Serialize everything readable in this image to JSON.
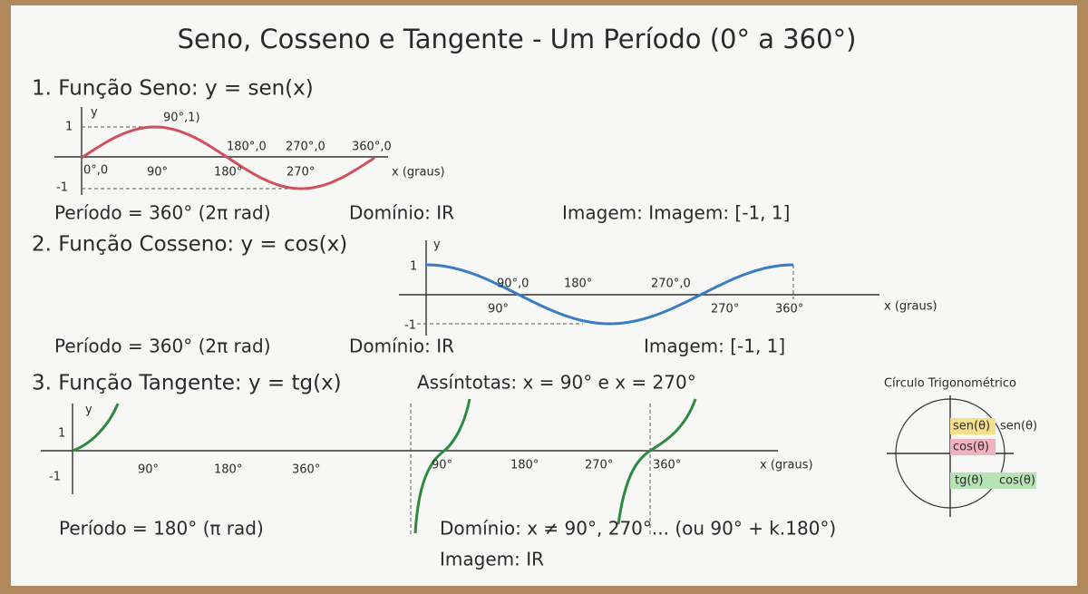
{
  "title": "Seno, Cosseno e Tangente - Um Período (0° a 360°)",
  "sine": {
    "heading": "1. Função Seno: y = sen(x)",
    "y_axis": "y",
    "x_axis": "x (graus)",
    "tick_1": "1",
    "tick_minus_1": "-1",
    "point_labels": [
      "90°,1)",
      "180°,0",
      "270°,0",
      "360°,0",
      "0°,0"
    ],
    "x_labels": [
      "90°",
      "180°",
      "270°"
    ],
    "period": "Período = 360° (2π rad)",
    "domain": "Domínio: IR",
    "image": "Imagem: Imagem: [-1, 1]"
  },
  "cosine": {
    "heading": "2. Função Cosseno: y = cos(x)",
    "y_axis": "y",
    "x_axis": "x (graus)",
    "tick_1": "1",
    "tick_minus_1": "-1",
    "point_labels": [
      "90°,0",
      "180°",
      "270°,0"
    ],
    "x_labels": [
      "90°",
      "270°",
      "360°"
    ],
    "period": "Período = 360° (2π rad)",
    "domain": "Domínio: IR",
    "image": "Imagem: [-1, 1]"
  },
  "tangent": {
    "heading": "3. Função Tangente: y = tg(x)",
    "asymptotes": "Assíntotas: x = 90° e x = 270°",
    "y_axis": "y",
    "x_axis": "x (graus)",
    "tick_1": "1",
    "tick_minus_1": "-1",
    "x_labels_left": [
      "90°",
      "180°",
      "360°"
    ],
    "x_labels_right": [
      "90°",
      "180°",
      "270°",
      "360°"
    ],
    "period": "Período = 180° (π rad)",
    "domain": "Domínio: x ≠ 90°, 270°... (ou 90° + k.180°)",
    "image": "Imagem: IR"
  },
  "circle": {
    "title": "Círculo Trigonométrico",
    "labels": [
      "sen(θ)",
      "sen(θ)",
      "cos(θ)",
      "tg(θ)",
      "cos(θ)"
    ]
  }
}
